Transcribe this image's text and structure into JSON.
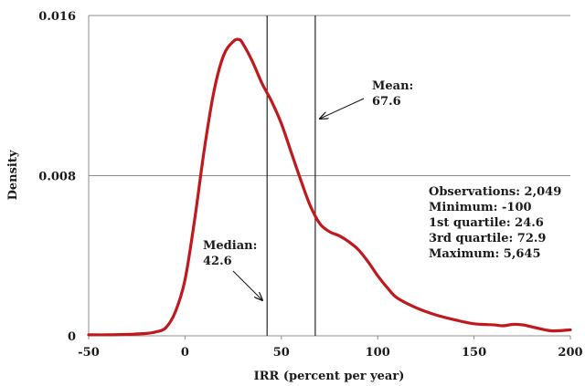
{
  "chart_data": {
    "type": "line",
    "title": "",
    "xlabel": "IRR (percent per year)",
    "ylabel": "Density",
    "xlim": [
      -50,
      200
    ],
    "ylim": [
      0,
      0.016
    ],
    "x_ticks": [
      "-50",
      "0",
      "50",
      "100",
      "150",
      "200"
    ],
    "y_ticks": [
      "0",
      "0.008",
      "0.016"
    ],
    "grid": "horizontal",
    "series_color": "#c0181c",
    "series": [
      {
        "x": [
          -50,
          -40,
          -30,
          -20,
          -15,
          -10,
          -5,
          0,
          5,
          10,
          15,
          20,
          25,
          28,
          30,
          35,
          40,
          45,
          50,
          55,
          60,
          65,
          70,
          75,
          80,
          85,
          90,
          95,
          100,
          105,
          110,
          120,
          130,
          140,
          150,
          160,
          165,
          170,
          175,
          180,
          190,
          200
        ],
        "y": [
          5e-05,
          5e-05,
          7e-05,
          0.00012,
          0.0002,
          0.0004,
          0.0012,
          0.0028,
          0.0058,
          0.0093,
          0.0122,
          0.014,
          0.0147,
          0.0148,
          0.0146,
          0.0137,
          0.0126,
          0.0117,
          0.0106,
          0.0092,
          0.0078,
          0.0065,
          0.0056,
          0.0052,
          0.005,
          0.0047,
          0.0043,
          0.0037,
          0.003,
          0.0024,
          0.0019,
          0.0014,
          0.00105,
          0.0008,
          0.0006,
          0.00055,
          0.0005,
          0.00057,
          0.00055,
          0.00045,
          0.00025,
          0.0003
        ]
      }
    ],
    "vlines": [
      {
        "x": 42.6,
        "label": "Median:",
        "value": "42.6"
      },
      {
        "x": 67.6,
        "label": "Mean:",
        "value": "67.6"
      }
    ],
    "stats_box": [
      "Observations: 2,049",
      "Minimum: -100",
      "1st quartile: 24.6",
      "3rd quartile: 72.9",
      "Maximum: 5,645"
    ]
  }
}
